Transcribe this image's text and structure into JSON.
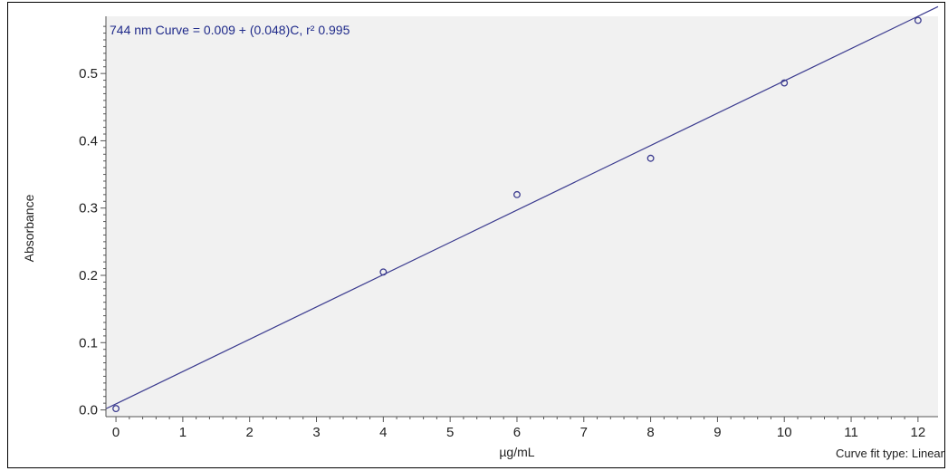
{
  "chart_data": {
    "type": "scatter",
    "title": "744 nm Curve = 0.009 + (0.048)C,  r² 0.995",
    "xlabel": "µg/mL",
    "ylabel": "Absorbance",
    "note": "Curve fit type: Linear",
    "xlim": [
      -0.15,
      12.3
    ],
    "ylim": [
      -0.01,
      0.585
    ],
    "x_ticks": [
      0,
      1,
      2,
      3,
      4,
      5,
      6,
      7,
      8,
      9,
      10,
      11,
      12
    ],
    "y_ticks": [
      0.0,
      0.1,
      0.2,
      0.3,
      0.4,
      0.5
    ],
    "y_tick_labels": [
      "0.0",
      "0.1",
      "0.2",
      "0.3",
      "0.4",
      "0.5"
    ],
    "grid": false,
    "legend": "none",
    "series": [
      {
        "x": [
          0,
          4,
          6,
          8,
          10,
          12
        ],
        "y": [
          0.002,
          0.205,
          0.32,
          0.374,
          0.486,
          0.579
        ]
      }
    ],
    "fit": {
      "type": "linear",
      "intercept": 0.009,
      "slope": 0.048,
      "r2": 0.995
    },
    "colors": {
      "plot_background": "#f1f1f1",
      "line": "#3b3b8f",
      "markers": "#3b3b8f",
      "text": "#222222",
      "equation_text": "#1f2a8a"
    }
  }
}
